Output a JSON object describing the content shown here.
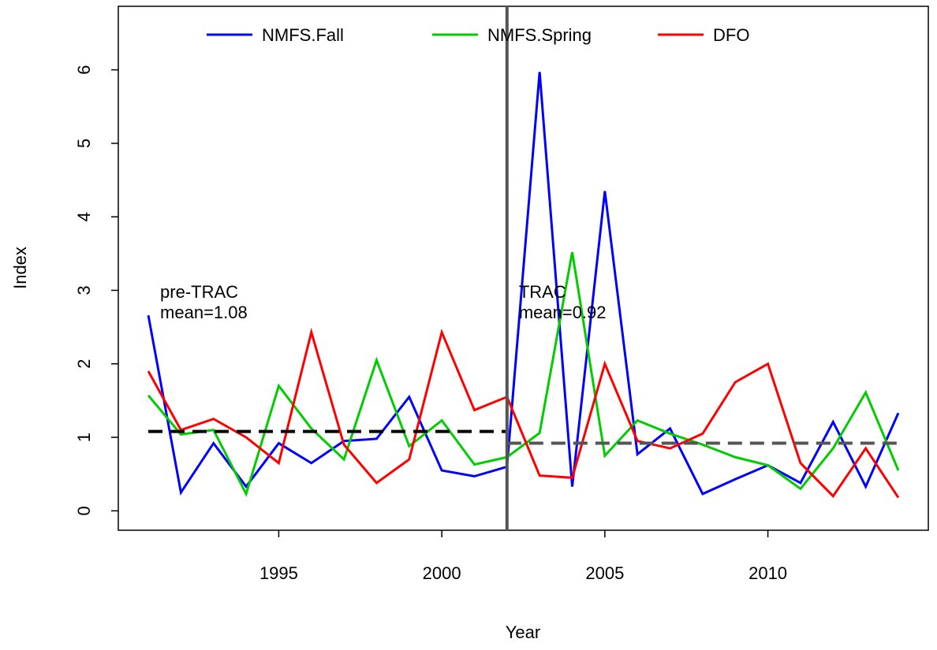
{
  "chart_data": {
    "type": "line",
    "x_label": "Year",
    "y_label": "Index",
    "x": [
      1991,
      1992,
      1993,
      1994,
      1995,
      1996,
      1997,
      1998,
      1999,
      2000,
      2001,
      2002,
      2003,
      2004,
      2005,
      2006,
      2007,
      2008,
      2009,
      2010,
      2011,
      2012,
      2013,
      2014
    ],
    "series": [
      {
        "name": "NMFS.Fall",
        "color": "#0000ff",
        "values": [
          2.66,
          0.25,
          0.92,
          0.33,
          0.92,
          0.65,
          0.95,
          0.98,
          1.55,
          0.55,
          0.47,
          0.6,
          5.97,
          0.33,
          4.35,
          0.77,
          1.12,
          0.23,
          0.43,
          0.62,
          0.38,
          1.21,
          0.33,
          1.33
        ]
      },
      {
        "name": "NMFS.Spring",
        "color": "#00cd00",
        "values": [
          1.57,
          1.04,
          1.1,
          0.23,
          1.7,
          1.12,
          0.7,
          2.05,
          0.88,
          1.23,
          0.63,
          0.73,
          1.06,
          3.52,
          0.75,
          1.23,
          1.05,
          0.9,
          0.73,
          0.62,
          0.3,
          0.85,
          1.61,
          0.55
        ]
      },
      {
        "name": "DFO",
        "color": "#ff0000",
        "values": [
          1.9,
          1.1,
          1.25,
          1.0,
          0.65,
          2.43,
          0.9,
          0.38,
          0.7,
          2.43,
          1.37,
          1.55,
          0.48,
          0.45,
          2.0,
          0.95,
          0.85,
          1.05,
          1.75,
          2.0,
          0.65,
          0.2,
          0.85,
          0.18
        ]
      }
    ],
    "vline": 2002,
    "vline_color": "#555555",
    "reference_lines": [
      {
        "x": [
          1991,
          2002
        ],
        "value": 1.08,
        "color": "#000000",
        "label": [
          "pre-TRAC",
          "mean=1.08"
        ]
      },
      {
        "x": [
          2002,
          2014
        ],
        "value": 0.92,
        "color": "#555555",
        "label": [
          "TRAC",
          "mean=0.92"
        ]
      }
    ],
    "xlim": [
      1990.08,
      2014.92
    ],
    "xticks": [
      1995,
      2000,
      2005,
      2010
    ],
    "ylim": [
      -0.264,
      6.864
    ],
    "yticks": [
      0,
      1,
      2,
      3,
      4,
      5,
      6
    ],
    "legend": "top"
  }
}
